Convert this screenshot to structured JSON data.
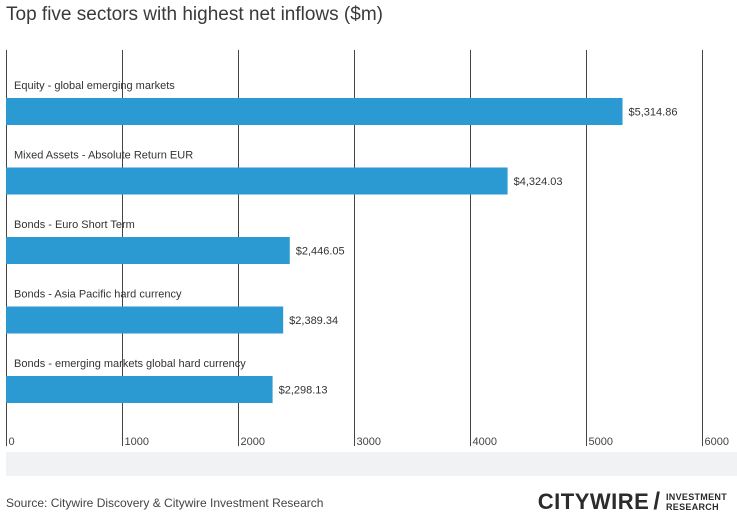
{
  "title": "Top five sectors with highest net inflows ($m)",
  "source": "Source: Citywire Discovery & Citywire Investment Research",
  "logo": {
    "wordmark": "CITYWIRE",
    "separator": "/",
    "tagline_1": "INVESTMENT",
    "tagline_2": "RESEARCH"
  },
  "chart_data": {
    "type": "bar",
    "orientation": "horizontal",
    "categories": [
      "Equity - global emerging markets",
      "Mixed Assets - Absolute Return EUR",
      "Bonds - Euro Short Term",
      "Bonds - Asia Pacific hard currency",
      "Bonds - emerging markets global hard currency"
    ],
    "values": [
      5314.86,
      4324.03,
      2446.05,
      2389.34,
      2298.13
    ],
    "value_labels": [
      "$5,314.86",
      "$4,324.03",
      "$2,446.05",
      "$2,389.34",
      "$2,298.13"
    ],
    "x_ticks": [
      "0",
      "1000",
      "2000",
      "3000",
      "4000",
      "5000",
      "6000"
    ],
    "xlim": [
      0,
      6000
    ],
    "grid": "vertical",
    "bar_color": "#2b9ad3"
  }
}
